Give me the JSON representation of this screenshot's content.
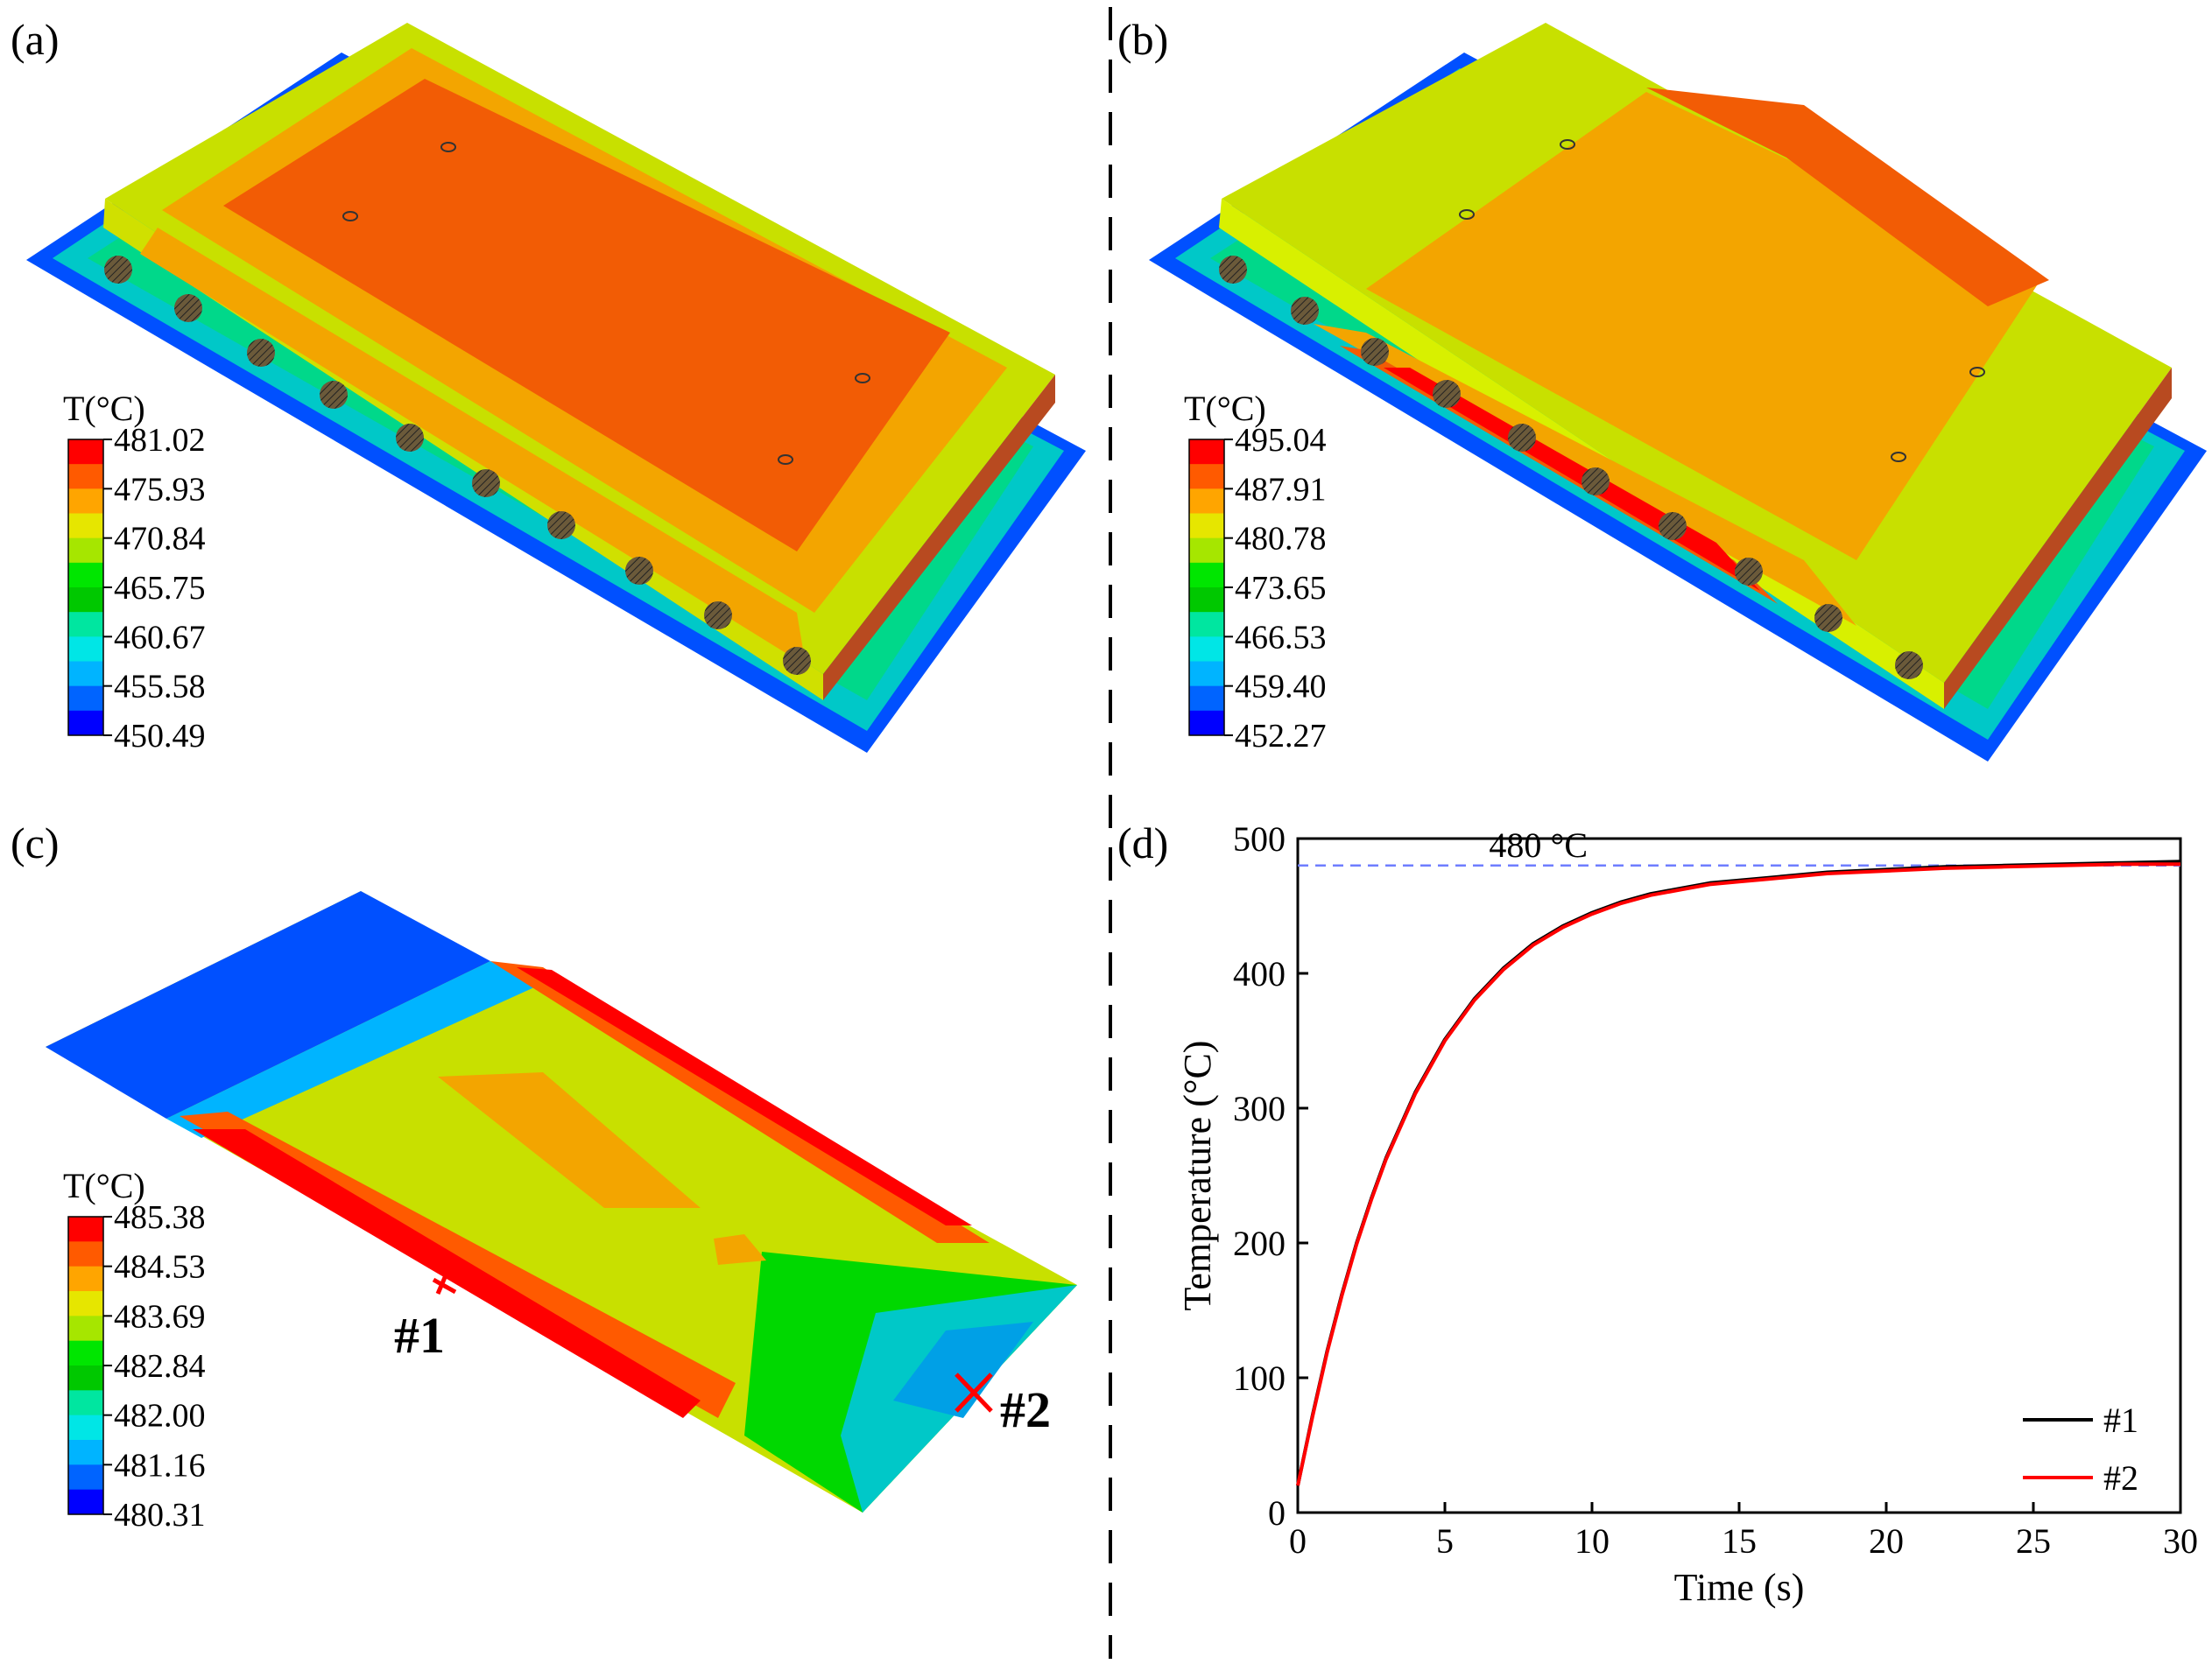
{
  "panels": {
    "a": {
      "label": "(a)",
      "legend_title": "T(°C)",
      "legend_values": [
        "481.02",
        "475.93",
        "470.84",
        "465.75",
        "460.67",
        "455.58",
        "450.49"
      ]
    },
    "b": {
      "label": "(b)",
      "legend_title": "T(°C)",
      "legend_values": [
        "495.04",
        "487.91",
        "480.78",
        "473.65",
        "466.53",
        "459.40",
        "452.27"
      ]
    },
    "c": {
      "label": "(c)",
      "legend_title": "T(°C)",
      "legend_values": [
        "485.38",
        "484.53",
        "483.69",
        "482.84",
        "482.00",
        "481.16",
        "480.31"
      ],
      "markers": [
        "#1",
        "#2"
      ]
    },
    "d": {
      "label": "(d)"
    }
  },
  "legend_colors": [
    "#ff0000",
    "#ff5a00",
    "#ffa500",
    "#e6e600",
    "#a6e600",
    "#00e600",
    "#00c800",
    "#00e6a0",
    "#00e6e6",
    "#00b4ff",
    "#0064ff",
    "#0000ff"
  ],
  "colors": {
    "series1": "#000000",
    "series2": "#ff0000",
    "reference": "#6e7dff",
    "marker": "#ff0000"
  },
  "chart_data": {
    "type": "line",
    "title": "",
    "xlabel": "Time (s)",
    "ylabel": "Temperature (°C)",
    "xlim": [
      0,
      30
    ],
    "ylim": [
      0,
      500
    ],
    "xticks": [
      0,
      5,
      10,
      15,
      20,
      25,
      30
    ],
    "yticks": [
      0,
      100,
      200,
      300,
      400,
      500
    ],
    "grid": false,
    "legend_position": "bottom-right",
    "x": [
      0,
      0.5,
      1,
      1.5,
      2,
      2.5,
      3,
      4,
      5,
      6,
      7,
      8,
      9,
      10,
      11,
      12,
      13,
      14,
      15,
      16,
      18,
      20,
      22,
      24,
      26,
      28,
      30
    ],
    "series": [
      {
        "name": "#1",
        "values": [
          20,
          72,
          120,
          162,
          200,
          233,
          263,
          312,
          351,
          381,
          404,
          422,
          435,
          445,
          453,
          459,
          463,
          467,
          469,
          471,
          475,
          477,
          479,
          480,
          481,
          482,
          483
        ]
      },
      {
        "name": "#2",
        "values": [
          20,
          71,
          119,
          161,
          199,
          232,
          262,
          311,
          350,
          380,
          403,
          421,
          434,
          444,
          452,
          458,
          462,
          466,
          468,
          470,
          474,
          476,
          478,
          479,
          480,
          481,
          481
        ]
      }
    ],
    "reference_line": {
      "y": 480,
      "label": "480 °C"
    }
  }
}
